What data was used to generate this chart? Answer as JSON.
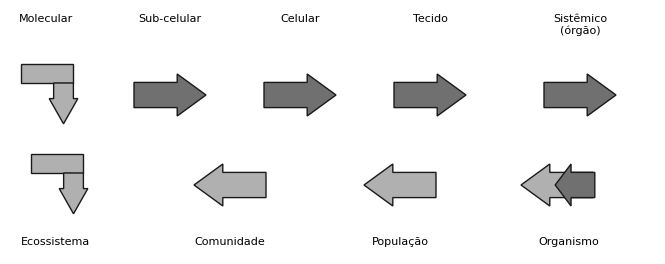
{
  "fig_width": 6.65,
  "fig_height": 2.64,
  "dpi": 100,
  "background_color": "#ffffff",
  "arrow_fill_light": "#b0b0b0",
  "arrow_fill_dark": "#707070",
  "arrow_edge": "#1a1a1a",
  "arrow_lw": 1.0,
  "row1_labels": [
    "Molecular",
    "Sub-celular",
    "Celular",
    "Tecido",
    "Sistêmico\n(órgão)"
  ],
  "row2_labels": [
    "Ecossistema",
    "Comunidade",
    "População",
    "Organismo"
  ],
  "font_size": 8.0
}
